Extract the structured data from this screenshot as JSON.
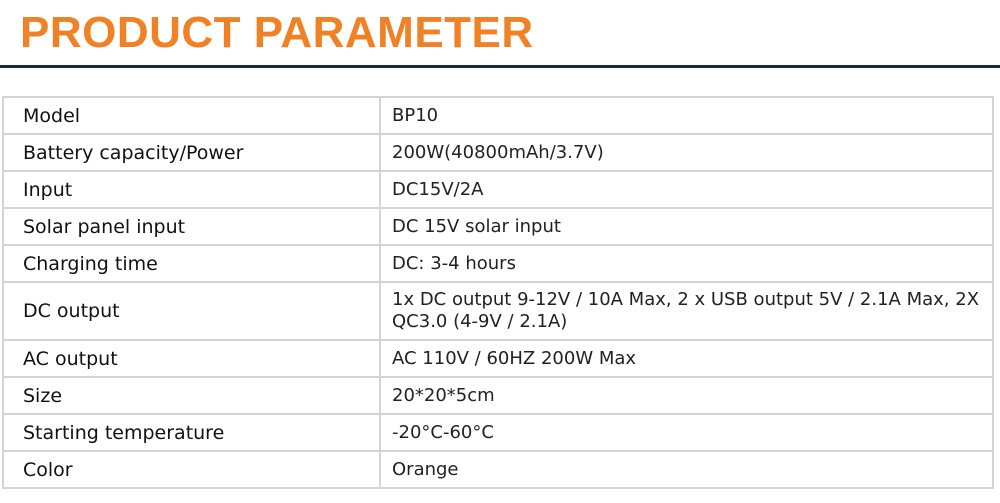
{
  "title": "PRODUCT PARAMETER",
  "colors": {
    "title": "#f08124",
    "rule": "#1b2842"
  },
  "rows": [
    {
      "label": "Model",
      "value": "BP10"
    },
    {
      "label": "Battery capacity/Power",
      "value": "200W(40800mAh/3.7V)"
    },
    {
      "label": "Input",
      "value": "DC15V/2A"
    },
    {
      "label": "Solar panel input",
      "value": "DC 15V solar input"
    },
    {
      "label": "Charging time",
      "value": "DC: 3-4 hours"
    },
    {
      "label": "DC output",
      "value": "1x DC output 9-12V / 10A Max, 2 x USB output 5V / 2.1A Max, 2X QC3.0 (4-9V / 2.1A)"
    },
    {
      "label": "AC output",
      "value": "AC 110V / 60HZ 200W Max"
    },
    {
      "label": "Size",
      "value": "20*20*5cm"
    },
    {
      "label": "Starting temperature",
      "value": "-20°C-60°C"
    },
    {
      "label": "Color",
      "value": "Orange"
    }
  ]
}
